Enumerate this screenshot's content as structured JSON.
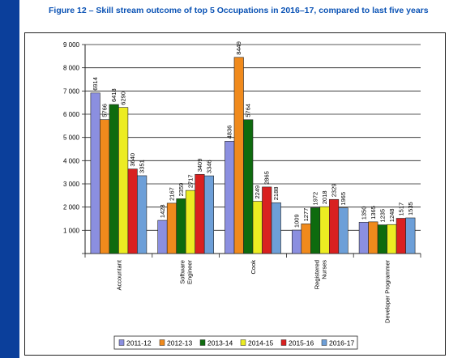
{
  "figure_title": "Figure 12 – Skill stream outcome of top 5 Occupations in 2016–17, compared to last five years",
  "chart_data": {
    "type": "bar",
    "title": "",
    "xlabel": "",
    "ylabel": "",
    "ylim": [
      0,
      9000
    ],
    "yticks": [
      0,
      1000,
      2000,
      3000,
      4000,
      5000,
      6000,
      7000,
      8000,
      9000
    ],
    "ytick_labels": [
      "",
      "1 000",
      "2 000",
      "3 000",
      "4 000",
      "5 000",
      "6 000",
      "7 000",
      "8 000",
      "9 000"
    ],
    "grid": true,
    "legend_position": "bottom",
    "categories": [
      [
        "Accountant"
      ],
      [
        "Software",
        "Engineer"
      ],
      [
        "Cook"
      ],
      [
        "Registered",
        "Nurses"
      ],
      [
        "Developer Programmer"
      ]
    ],
    "series": [
      {
        "name": "2011-12",
        "color": "#8b8fe0",
        "values": [
          6914,
          1428,
          4836,
          1009,
          1350
        ]
      },
      {
        "name": "2012-13",
        "color": "#f08a1c",
        "values": [
          5766,
          2167,
          8449,
          1277,
          1365
        ]
      },
      {
        "name": "2013-14",
        "color": "#0e6b0e",
        "values": [
          6418,
          2359,
          5764,
          1972,
          1235
        ]
      },
      {
        "name": "2014-15",
        "color": "#ecec22",
        "values": [
          6290,
          2717,
          2249,
          2018,
          1248
        ]
      },
      {
        "name": "2015-16",
        "color": "#d92020",
        "values": [
          3640,
          3409,
          2865,
          2329,
          1517
        ]
      },
      {
        "name": "2016-17",
        "color": "#6d9fd8",
        "values": [
          3351,
          3346,
          2188,
          1965,
          1535
        ]
      }
    ]
  }
}
